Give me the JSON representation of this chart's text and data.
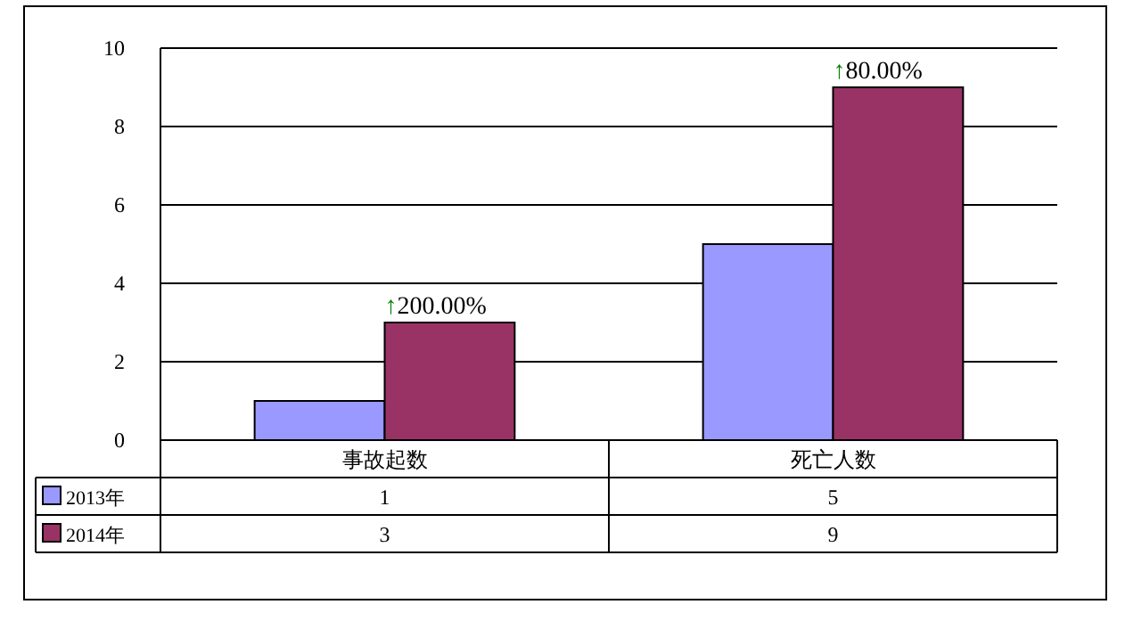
{
  "chart_data": {
    "type": "bar",
    "categories": [
      "事故起数",
      "死亡人数"
    ],
    "series": [
      {
        "name": "2013年",
        "color": "#9999ff",
        "values": [
          1,
          5
        ]
      },
      {
        "name": "2014年",
        "color": "#993366",
        "values": [
          3,
          9
        ]
      }
    ],
    "ylim": [
      0,
      10
    ],
    "yticks": [
      0,
      2,
      4,
      6,
      8,
      10
    ],
    "grid": "y",
    "legend": "bottom",
    "data_labels": true,
    "annotations": [
      {
        "text": "↑200.00%",
        "x": "事故起数",
        "y": 3
      },
      {
        "text": "↑80.00%",
        "x": "死亡人数",
        "y": 9
      }
    ]
  }
}
